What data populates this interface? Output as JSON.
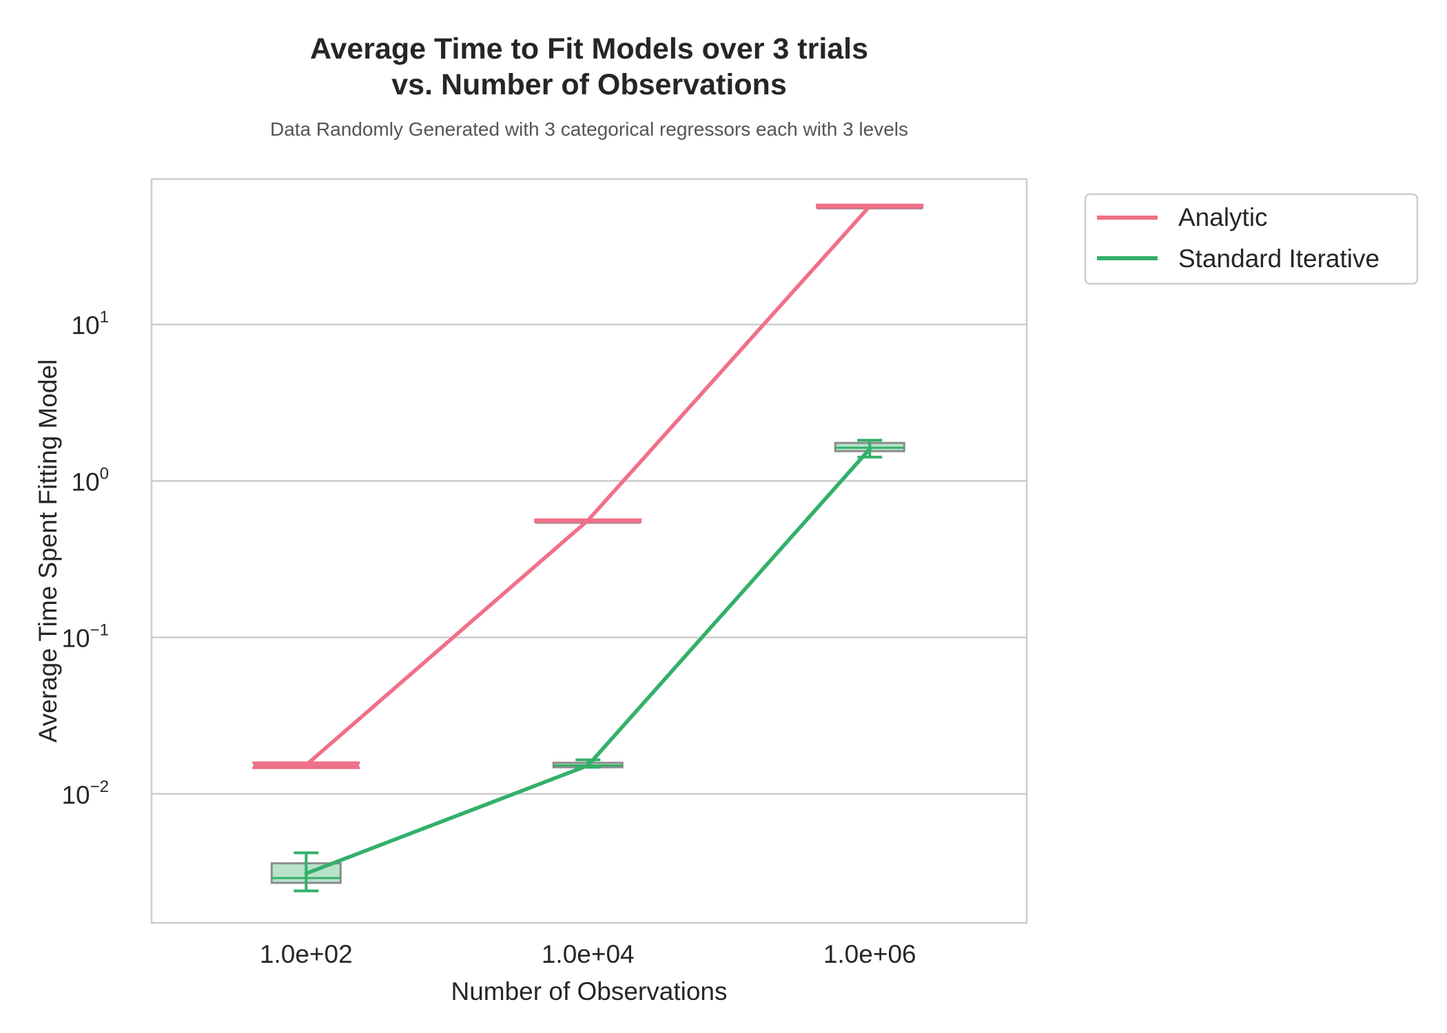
{
  "chart_data": {
    "type": "line",
    "title": [
      "Average Time to Fit Models over 3 trials",
      "vs. Number of Observations"
    ],
    "subtitle": "Data Randomly Generated with 3 categorical regressors each with 3 levels",
    "xlabel": "Number of Observations",
    "ylabel": "Average Time Spent Fitting Model",
    "x_scale": "log",
    "y_scale": "log",
    "x_ticks": [
      100,
      10000,
      1000000
    ],
    "x_tick_labels": [
      "1.0e+02",
      "1.0e+04",
      "1.0e+06"
    ],
    "x_range": [
      8,
      13000000
    ],
    "y_ticks": [
      0.01,
      0.1,
      1,
      10
    ],
    "y_tick_labels": [
      {
        "base": "10",
        "exp": "−2"
      },
      {
        "base": "10",
        "exp": "−1"
      },
      {
        "base": "10",
        "exp": "0"
      },
      {
        "base": "10",
        "exp": "1"
      }
    ],
    "ylim": [
      0.0015,
      85
    ],
    "grid": "y-major",
    "legend_position": "outside-upper-right",
    "series": [
      {
        "name": "Analytic",
        "color": "#f07088",
        "x": [
          100,
          10000,
          1000000
        ],
        "values": [
          0.0153,
          0.56,
          57
        ],
        "whisker_low": [
          0.0147,
          0.55,
          56
        ],
        "whisker_high": [
          0.0158,
          0.565,
          58
        ],
        "box_q1": [
          0.0148,
          0.555,
          56.5
        ],
        "box_q3": [
          0.0157,
          0.563,
          57.5
        ],
        "median": [
          0.0152,
          0.56,
          57
        ]
      },
      {
        "name": "Standard Iterative",
        "color": "#33b06a",
        "x": [
          100,
          10000,
          1000000
        ],
        "values": [
          0.0031,
          0.0152,
          1.6
        ],
        "whisker_low": [
          0.0024,
          0.0148,
          1.42
        ],
        "whisker_high": [
          0.0042,
          0.0165,
          1.82
        ],
        "box_q1": [
          0.0027,
          0.0148,
          1.55
        ],
        "box_q3": [
          0.0036,
          0.0158,
          1.75
        ],
        "median": [
          0.0029,
          0.0152,
          1.63
        ]
      }
    ]
  }
}
